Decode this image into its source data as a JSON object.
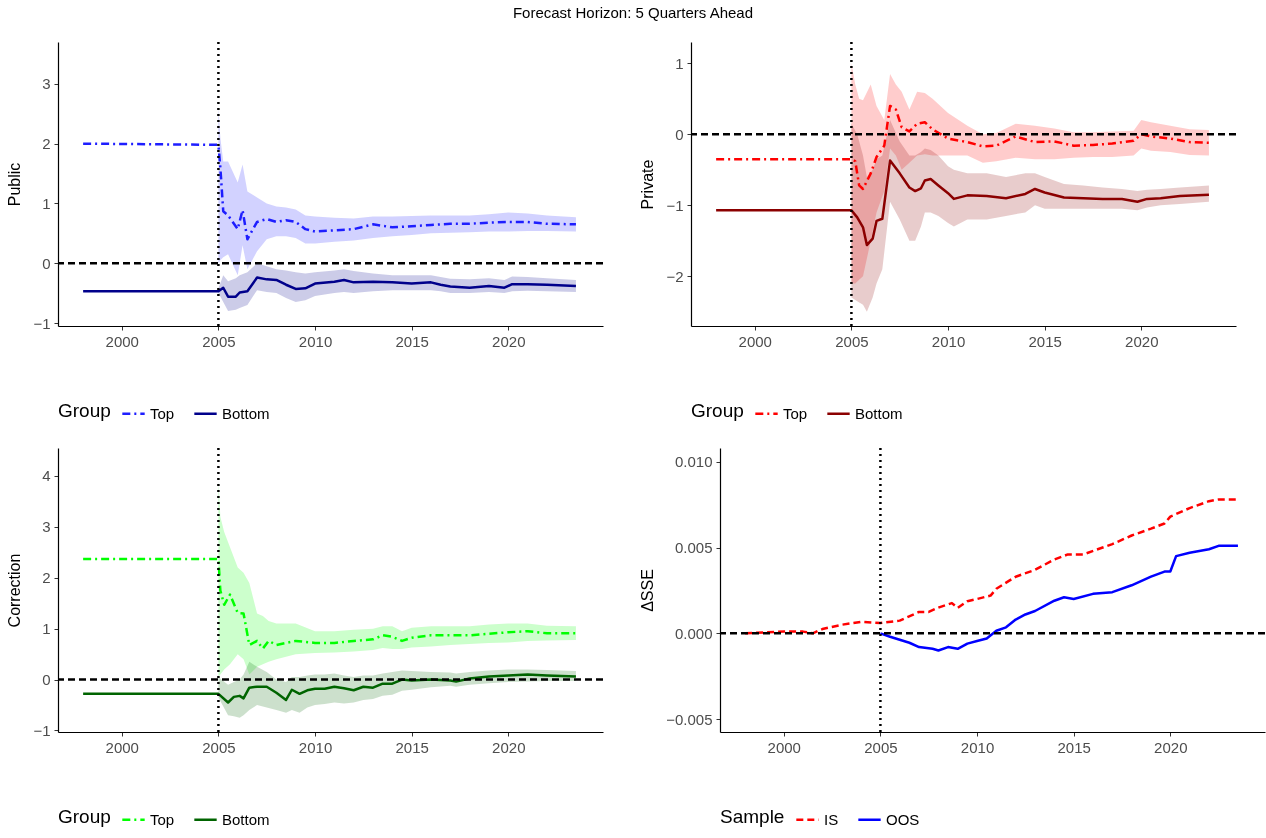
{
  "chart_data": [
    {
      "type": "line",
      "title": "Forecast Horizon: 5 Quarters Ahead",
      "ylabel": "Public",
      "legend_title": "Group",
      "legend": "bottom",
      "xlim": [
        1996.7,
        2024.9
      ],
      "xticks": [
        2000,
        2005,
        2010,
        2015,
        2020
      ],
      "ylim": [
        -1.05,
        3.7
      ],
      "yticks": [
        {
          "value": -1,
          "label": "−1"
        },
        0,
        1,
        2,
        3
      ],
      "ref_lines": [
        {
          "axis": "y",
          "value": 0,
          "line_style": "dashed",
          "color": "#000000"
        },
        {
          "axis": "x",
          "value": 2005,
          "line_style": "dotted",
          "color": "#000000"
        }
      ],
      "series": [
        {
          "name": "Top",
          "color": "#1e1eff",
          "line_style": "dashdot",
          "x": [
            1998,
            2005,
            2005.1,
            2005.25,
            2005.5,
            2006,
            2006.25,
            2006.5,
            2007,
            2007.5,
            2008,
            2008.5,
            2009,
            2009.5,
            2010,
            2011,
            2012,
            2013,
            2014,
            2015,
            2016,
            2017,
            2018,
            2019,
            2020,
            2021,
            2022,
            2023.5
          ],
          "values": [
            2,
            1.98,
            1.6,
            0.87,
            0.8,
            0.57,
            0.89,
            0.4,
            0.69,
            0.74,
            0.69,
            0.72,
            0.69,
            0.57,
            0.53,
            0.55,
            0.57,
            0.65,
            0.6,
            0.62,
            0.64,
            0.66,
            0.66,
            0.68,
            0.69,
            0.69,
            0.66,
            0.65
          ],
          "lower": [
            null,
            0.0,
            0.05,
            0.1,
            0.15,
            -0.2,
            0.3,
            -0.1,
            0.2,
            0.4,
            0.45,
            0.45,
            0.42,
            0.33,
            0.33,
            0.36,
            0.38,
            0.42,
            0.45,
            0.47,
            0.5,
            0.51,
            0.52,
            0.53,
            0.53,
            0.54,
            0.54,
            0.53
          ],
          "upper": [
            null,
            2.6,
            2.1,
            1.7,
            1.7,
            1.35,
            1.65,
            1.2,
            1.1,
            1.0,
            0.95,
            0.93,
            0.9,
            0.8,
            0.78,
            0.76,
            0.75,
            0.78,
            0.78,
            0.79,
            0.8,
            0.8,
            0.8,
            0.82,
            0.85,
            0.83,
            0.8,
            0.77
          ]
        },
        {
          "name": "Bottom",
          "color": "#00008b",
          "line_style": "solid",
          "x": [
            1998,
            2005,
            2005.25,
            2005.5,
            2005.9,
            2006.1,
            2006.5,
            2007,
            2007.5,
            2008,
            2008.5,
            2009,
            2009.5,
            2010,
            2011,
            2011.5,
            2012,
            2013,
            2014,
            2015,
            2016,
            2016.5,
            2017,
            2018,
            2019,
            2019.8,
            2020.2,
            2021,
            2022,
            2023.5
          ],
          "values": [
            -0.47,
            -0.47,
            -0.41,
            -0.56,
            -0.56,
            -0.49,
            -0.47,
            -0.24,
            -0.27,
            -0.28,
            -0.36,
            -0.43,
            -0.42,
            -0.34,
            -0.31,
            -0.28,
            -0.32,
            -0.31,
            -0.32,
            -0.34,
            -0.32,
            -0.36,
            -0.39,
            -0.41,
            -0.38,
            -0.41,
            -0.35,
            -0.35,
            -0.36,
            -0.38
          ],
          "lower": [
            null,
            -0.5,
            -0.65,
            -0.8,
            -0.78,
            -0.75,
            -0.7,
            -0.45,
            -0.48,
            -0.5,
            -0.58,
            -0.65,
            -0.62,
            -0.55,
            -0.5,
            -0.48,
            -0.5,
            -0.47,
            -0.45,
            -0.45,
            -0.45,
            -0.47,
            -0.5,
            -0.5,
            -0.48,
            -0.5,
            -0.47,
            -0.46,
            -0.47,
            -0.48
          ],
          "upper": [
            null,
            -0.42,
            -0.2,
            -0.3,
            -0.25,
            -0.2,
            -0.15,
            0.0,
            -0.05,
            -0.1,
            -0.12,
            -0.15,
            -0.17,
            -0.15,
            -0.12,
            -0.1,
            -0.13,
            -0.17,
            -0.2,
            -0.2,
            -0.2,
            -0.23,
            -0.26,
            -0.27,
            -0.25,
            -0.28,
            -0.22,
            -0.23,
            -0.25,
            -0.28
          ]
        }
      ]
    },
    {
      "type": "line",
      "ylabel": "Private",
      "legend_title": "Group",
      "legend": "bottom",
      "xlim": [
        1996.7,
        2024.9
      ],
      "xticks": [
        2000,
        2005,
        2010,
        2015,
        2020
      ],
      "ylim": [
        -2.7,
        1.3
      ],
      "yticks": [
        {
          "value": -2,
          "label": "−2"
        },
        {
          "value": -1,
          "label": "−1"
        },
        0,
        1
      ],
      "ref_lines": [
        {
          "axis": "y",
          "value": 0,
          "line_style": "dashed",
          "color": "#000000"
        },
        {
          "axis": "x",
          "value": 2005,
          "line_style": "dotted",
          "color": "#000000"
        }
      ],
      "series": [
        {
          "name": "Top",
          "color": "#ff0000",
          "line_style": "dashdot",
          "x": [
            1998,
            2005,
            2005.2,
            2005.4,
            2005.6,
            2006,
            2006.3,
            2006.7,
            2007,
            2007.3,
            2007.6,
            2008,
            2008.4,
            2008.8,
            2009.2,
            2010,
            2011,
            2011.8,
            2012.5,
            2013.5,
            2014.5,
            2015.5,
            2016.5,
            2017.5,
            2018.5,
            2019.6,
            2020,
            2020.5,
            2021.5,
            2022.5,
            2023.5
          ],
          "values": [
            -0.35,
            -0.35,
            -0.38,
            -0.72,
            -0.77,
            -0.55,
            -0.32,
            -0.16,
            0.4,
            0.35,
            0.1,
            0.04,
            0.15,
            0.17,
            0.07,
            -0.06,
            -0.11,
            -0.17,
            -0.16,
            -0.03,
            -0.11,
            -0.1,
            -0.16,
            -0.15,
            -0.13,
            -0.09,
            0,
            -0.03,
            -0.06,
            -0.11,
            -0.12
          ],
          "lower": [
            null,
            -2.1,
            -2.1,
            -2.05,
            -2.0,
            -1.5,
            -1.1,
            -0.8,
            -0.2,
            -0.3,
            -0.5,
            -0.4,
            -0.3,
            -0.28,
            -0.3,
            -0.3,
            -0.3,
            -0.4,
            -0.38,
            -0.33,
            -0.35,
            -0.35,
            -0.33,
            -0.32,
            -0.32,
            -0.3,
            -0.2,
            -0.23,
            -0.25,
            -0.29,
            -0.3
          ],
          "upper": [
            null,
            1.0,
            0.7,
            0.5,
            0.48,
            0.7,
            0.4,
            0.2,
            0.85,
            0.7,
            0.6,
            0.35,
            0.6,
            0.58,
            0.5,
            0.3,
            0.12,
            0.0,
            0.02,
            0.15,
            0.12,
            0.08,
            0.03,
            0.03,
            0.04,
            0.05,
            0.2,
            0.17,
            0.12,
            0.07,
            0.06
          ]
        },
        {
          "name": "Bottom",
          "color": "#8b0000",
          "line_style": "solid",
          "x": [
            1998,
            2005,
            2005.3,
            2005.6,
            2005.8,
            2006.1,
            2006.3,
            2006.6,
            2007,
            2007.5,
            2008,
            2008.3,
            2008.6,
            2008.8,
            2009.1,
            2009.5,
            2010,
            2010.3,
            2011,
            2012,
            2013,
            2014,
            2014.5,
            2015,
            2016,
            2017,
            2018,
            2019,
            2019.8,
            2020.3,
            2021,
            2022,
            2023.5
          ],
          "values": [
            -1.07,
            -1.07,
            -1.17,
            -1.31,
            -1.56,
            -1.47,
            -1.22,
            -1.19,
            -0.37,
            -0.55,
            -0.75,
            -0.8,
            -0.76,
            -0.65,
            -0.63,
            -0.72,
            -0.83,
            -0.91,
            -0.86,
            -0.87,
            -0.9,
            -0.84,
            -0.77,
            -0.82,
            -0.89,
            -0.9,
            -0.91,
            -0.91,
            -0.95,
            -0.91,
            -0.9,
            -0.87,
            -0.85
          ],
          "lower": [
            null,
            -2.3,
            -2.35,
            -2.4,
            -2.5,
            -2.3,
            -2.1,
            -1.9,
            -0.95,
            -1.2,
            -1.5,
            -1.5,
            -1.3,
            -1.1,
            -1.1,
            -1.15,
            -1.25,
            -1.3,
            -1.2,
            -1.2,
            -1.15,
            -1.1,
            -1.0,
            -1.05,
            -1.05,
            -1.05,
            -1.05,
            -1.05,
            -1.07,
            -1.03,
            -1.0,
            -0.98,
            -0.95
          ],
          "upper": [
            null,
            0.15,
            0.0,
            -0.3,
            -0.6,
            -0.5,
            -0.35,
            -0.3,
            0.2,
            -0.1,
            -0.3,
            -0.3,
            -0.25,
            -0.2,
            -0.22,
            -0.3,
            -0.45,
            -0.5,
            -0.55,
            -0.55,
            -0.6,
            -0.55,
            -0.55,
            -0.6,
            -0.7,
            -0.72,
            -0.75,
            -0.77,
            -0.8,
            -0.78,
            -0.77,
            -0.75,
            -0.72
          ]
        }
      ]
    },
    {
      "type": "line",
      "ylabel": "Correction",
      "legend_title": "Group",
      "legend": "bottom",
      "xlim": [
        1996.7,
        2024.9
      ],
      "xticks": [
        2000,
        2005,
        2010,
        2015,
        2020
      ],
      "ylim": [
        -1.03,
        4.55
      ],
      "yticks": [
        {
          "value": -1,
          "label": "−1"
        },
        0,
        1,
        2,
        3,
        4
      ],
      "ref_lines": [
        {
          "axis": "y",
          "value": 0,
          "line_style": "dashed",
          "color": "#000000"
        },
        {
          "axis": "x",
          "value": 2005,
          "line_style": "dotted",
          "color": "#000000"
        }
      ],
      "series": [
        {
          "name": "Top",
          "color": "#00ff00",
          "line_style": "dashdot",
          "x": [
            1998,
            2005,
            2005.1,
            2005.3,
            2005.6,
            2006,
            2006.3,
            2006.6,
            2007,
            2007.3,
            2007.6,
            2008,
            2009,
            2010,
            2011,
            2012,
            2013,
            2013.5,
            2014,
            2014.5,
            2015,
            2016,
            2017,
            2018,
            2019,
            2020,
            2021,
            2022,
            2023.5
          ],
          "values": [
            2.37,
            2.37,
            1.75,
            1.47,
            1.67,
            1.31,
            1.3,
            0.68,
            0.76,
            0.61,
            0.76,
            0.68,
            0.76,
            0.72,
            0.72,
            0.76,
            0.79,
            0.87,
            0.84,
            0.76,
            0.82,
            0.87,
            0.87,
            0.87,
            0.9,
            0.93,
            0.95,
            0.91,
            0.91
          ],
          "lower": [
            null,
            0.05,
            0.1,
            0.2,
            0.3,
            0.5,
            0.4,
            0.1,
            0.25,
            0.3,
            0.35,
            0.4,
            0.5,
            0.52,
            0.53,
            0.55,
            0.58,
            0.62,
            0.6,
            0.6,
            0.63,
            0.65,
            0.68,
            0.7,
            0.72,
            0.73,
            0.76,
            0.77,
            0.78
          ],
          "upper": [
            null,
            3.9,
            3.2,
            2.9,
            2.6,
            2.2,
            2.1,
            1.9,
            1.3,
            1.25,
            1.15,
            1.1,
            1.1,
            0.95,
            0.95,
            0.98,
            1.0,
            1.05,
            1.05,
            0.95,
            1.02,
            1.05,
            1.05,
            1.05,
            1.08,
            1.1,
            1.1,
            1.06,
            1.05
          ]
        },
        {
          "name": "Bottom",
          "color": "#006400",
          "line_style": "solid",
          "x": [
            1998,
            2005,
            2005.5,
            2005.8,
            2006.1,
            2006.3,
            2006.6,
            2007,
            2007.5,
            2008,
            2008.5,
            2008.8,
            2009.2,
            2009.6,
            2010,
            2010.5,
            2011,
            2011.5,
            2012,
            2012.5,
            2013,
            2013.5,
            2014,
            2014.5,
            2015,
            2016,
            2017,
            2017.3,
            2018,
            2019,
            2020,
            2021,
            2022,
            2023.5
          ],
          "values": [
            -0.28,
            -0.28,
            -0.45,
            -0.34,
            -0.32,
            -0.37,
            -0.16,
            -0.14,
            -0.14,
            -0.26,
            -0.4,
            -0.2,
            -0.28,
            -0.21,
            -0.18,
            -0.18,
            -0.14,
            -0.17,
            -0.21,
            -0.14,
            -0.16,
            -0.08,
            -0.08,
            0,
            -0.02,
            0,
            -0.02,
            -0.04,
            0.02,
            0.06,
            0.08,
            0.1,
            0.08,
            0.06
          ],
          "lower": [
            null,
            -0.35,
            -0.7,
            -0.72,
            -0.75,
            -0.7,
            -0.6,
            -0.5,
            -0.55,
            -0.6,
            -0.65,
            -0.6,
            -0.65,
            -0.55,
            -0.5,
            -0.48,
            -0.45,
            -0.47,
            -0.45,
            -0.4,
            -0.38,
            -0.32,
            -0.3,
            -0.22,
            -0.2,
            -0.15,
            -0.12,
            -0.14,
            -0.1,
            -0.07,
            -0.05,
            -0.04,
            -0.03,
            -0.03
          ],
          "upper": [
            null,
            0.05,
            -0.1,
            -0.05,
            0.0,
            0.1,
            0.35,
            0.25,
            0.15,
            0.0,
            -0.05,
            0.05,
            0.05,
            0.08,
            0.1,
            0.1,
            0.12,
            0.08,
            0.05,
            0.08,
            0.08,
            0.12,
            0.15,
            0.18,
            0.17,
            0.15,
            0.14,
            0.12,
            0.15,
            0.18,
            0.2,
            0.2,
            0.19,
            0.17
          ]
        }
      ]
    },
    {
      "type": "line",
      "ylabel": "ΔSSE",
      "legend_title": "Sample",
      "legend": "bottom",
      "xlim": [
        1996.7,
        2024.9
      ],
      "xticks": [
        2000,
        2005,
        2010,
        2015,
        2020
      ],
      "ylim": [
        -0.00575,
        0.0108
      ],
      "yticks": [
        {
          "value": -0.005,
          "label": "−0.005"
        },
        {
          "value": 0,
          "label": "0.000"
        },
        {
          "value": 0.005,
          "label": "0.005"
        },
        {
          "value": 0.01,
          "label": "0.010"
        }
      ],
      "ref_lines": [
        {
          "axis": "y",
          "value": 0,
          "line_style": "dashed",
          "color": "#000000"
        },
        {
          "axis": "x",
          "value": 2005,
          "line_style": "dotted",
          "color": "#000000"
        }
      ],
      "series": [
        {
          "name": "IS",
          "color": "#ff0000",
          "line_style": "dashed",
          "x": [
            1998,
            2000,
            2001,
            2001.5,
            2002,
            2003,
            2004,
            2005,
            2006,
            2007,
            2007.5,
            2008,
            2008.7,
            2009,
            2009.5,
            2010,
            2010.7,
            2011,
            2012,
            2013,
            2014,
            2014.7,
            2015.5,
            2016.5,
            2017,
            2018,
            2019,
            2019.7,
            2020,
            2021,
            2022,
            2022.5,
            2023.5
          ],
          "values": [
            0,
            0.0001,
            0.0001,
            0,
            0.00025,
            0.0005,
            0.00067,
            0.0006,
            0.00074,
            0.00125,
            0.00125,
            0.0015,
            0.00176,
            0.00148,
            0.00187,
            0.002,
            0.0022,
            0.0026,
            0.0033,
            0.0037,
            0.0043,
            0.0046,
            0.0046,
            0.005,
            0.0052,
            0.0057,
            0.0061,
            0.0064,
            0.0068,
            0.0073,
            0.0077,
            0.0078,
            0.0078
          ]
        },
        {
          "name": "OOS",
          "color": "#0000ff",
          "line_style": "solid",
          "x": [
            2005,
            2005.5,
            2006.5,
            2007,
            2007.7,
            2008,
            2008.5,
            2009,
            2009.5,
            2010,
            2010.5,
            2011,
            2011.5,
            2012,
            2012.5,
            2013,
            2014,
            2014.5,
            2015,
            2016,
            2017,
            2018,
            2019,
            2019.7,
            2020,
            2020.3,
            2021,
            2022,
            2022.5,
            2023.5
          ],
          "values": [
            0,
            -0.0002,
            -0.00055,
            -0.0008,
            -0.0009,
            -0.001,
            -0.0008,
            -0.0009,
            -0.0006,
            -0.00045,
            -0.0003,
            0.00015,
            0.00035,
            0.0008,
            0.0011,
            0.0013,
            0.0019,
            0.0021,
            0.002,
            0.0023,
            0.0024,
            0.0028,
            0.0033,
            0.0036,
            0.0036,
            0.0045,
            0.0047,
            0.0049,
            0.0051,
            0.0051
          ]
        }
      ]
    }
  ]
}
